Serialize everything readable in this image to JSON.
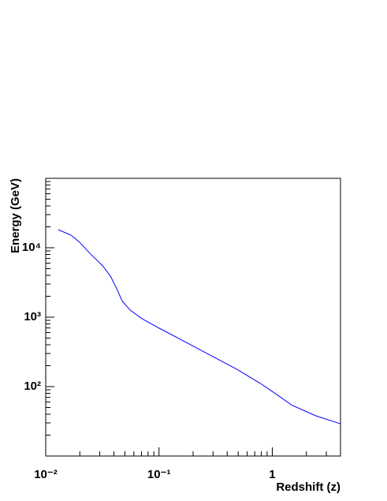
{
  "chart_data": {
    "type": "line",
    "xlabel": "Redshift (z)",
    "ylabel": "Energy (GeV)",
    "log_x": true,
    "log_y": true,
    "xlim": [
      0.01,
      4
    ],
    "ylim": [
      10,
      100000
    ],
    "xticks": [
      {
        "value": 0.01,
        "label": "10⁻²"
      },
      {
        "value": 0.1,
        "label": "10⁻¹"
      },
      1
    ],
    "yticks": [
      {
        "value": 100,
        "label": "10²"
      },
      {
        "value": 1000,
        "label": "10³"
      },
      {
        "value": 10000,
        "label": "10⁴"
      }
    ],
    "xminorticks": [
      0.02,
      0.03,
      0.04,
      0.05,
      0.06,
      0.07,
      0.08,
      0.09,
      0.2,
      0.3,
      0.4,
      0.5,
      0.6,
      0.7,
      0.8,
      0.9,
      2,
      3,
      4
    ],
    "yminorticks": [
      20,
      30,
      40,
      50,
      60,
      70,
      80,
      90,
      200,
      300,
      400,
      500,
      600,
      700,
      800,
      900,
      2000,
      3000,
      4000,
      5000,
      6000,
      7000,
      8000,
      9000,
      20000,
      30000,
      40000,
      50000,
      60000,
      70000,
      80000,
      90000
    ],
    "series": [
      {
        "color": "#0000ff",
        "x": [
          0.0129,
          0.0167,
          0.0196,
          0.0249,
          0.0318,
          0.0373,
          0.0424,
          0.0474,
          0.0557,
          0.0709,
          0.0993,
          0.158,
          0.3,
          0.485,
          0.786,
          1.0,
          1.49,
          2.42,
          4.04
        ],
        "values": [
          18200,
          15200,
          12300,
          8100,
          5500,
          3900,
          2560,
          1700,
          1260,
          950,
          700,
          470,
          270,
          178,
          111,
          85,
          54,
          38,
          29
        ]
      }
    ]
  }
}
